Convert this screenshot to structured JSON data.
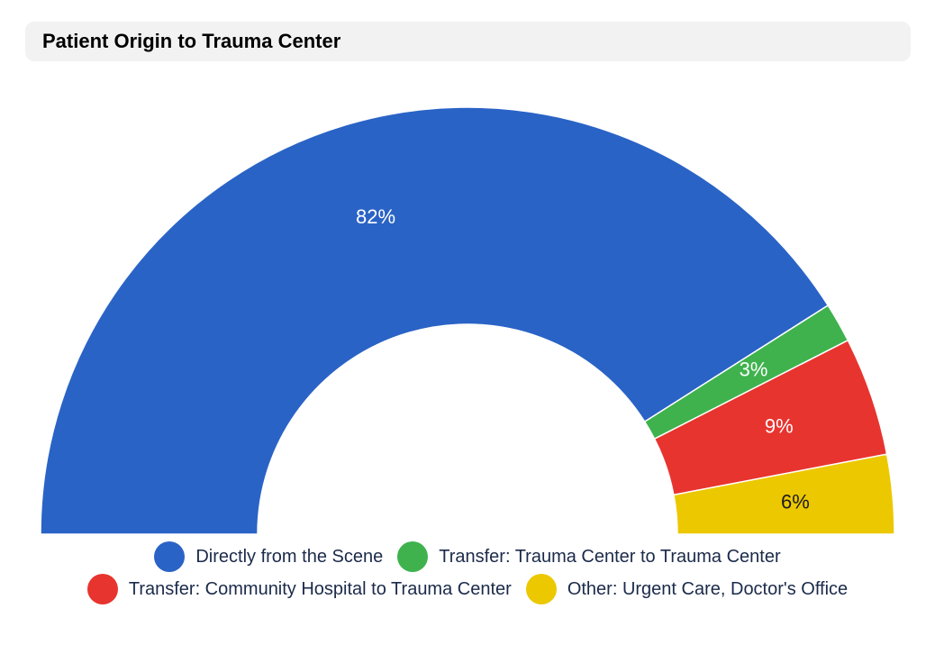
{
  "chart_data": {
    "type": "pie",
    "variant": "semi-donut",
    "title": "Patient Origin to Trauma Center",
    "slices": [
      {
        "name": "Directly from the Scene",
        "value": 82,
        "label": "82%",
        "color": "#2a63c6",
        "label_color": "#ffffff"
      },
      {
        "name": "Transfer: Trauma Center to Trauma Center",
        "value": 3,
        "label": "3%",
        "color": "#3fb24d",
        "label_color": "#ffffff"
      },
      {
        "name": "Transfer: Community Hospital to Trauma Center",
        "value": 9,
        "label": "9%",
        "color": "#e8342f",
        "label_color": "#ffffff"
      },
      {
        "name": "Other: Urgent Care, Doctor's Office",
        "value": 6,
        "label": "6%",
        "color": "#ecc800",
        "label_color": "#1a1a1a"
      }
    ],
    "legend_placement": "bottom"
  }
}
